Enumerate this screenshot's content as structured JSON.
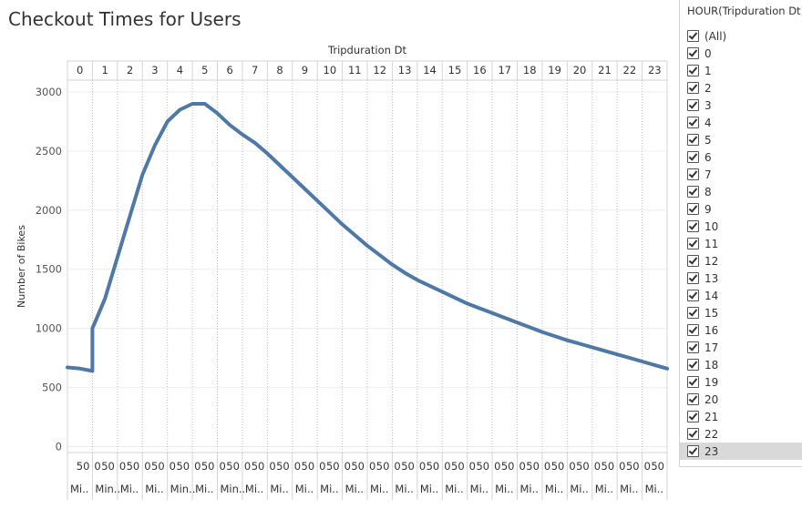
{
  "title": "Checkout Times for Users",
  "filter": {
    "title": "HOUR(Tripduration Dt)",
    "items": [
      "(All)",
      "0",
      "1",
      "2",
      "3",
      "4",
      "5",
      "6",
      "7",
      "8",
      "9",
      "10",
      "11",
      "12",
      "13",
      "14",
      "15",
      "16",
      "17",
      "18",
      "19",
      "20",
      "21",
      "22",
      "23"
    ],
    "selected": "23"
  },
  "chart_data": {
    "type": "line",
    "title": "Checkout Times for Users",
    "column_header": "Tripduration Dt",
    "ylabel": "Number of Bikes",
    "ylim": [
      -50,
      3100
    ],
    "yticks": [
      0,
      500,
      1000,
      1500,
      2000,
      2500,
      3000
    ],
    "panels": [
      "0",
      "1",
      "2",
      "3",
      "4",
      "5",
      "6",
      "7",
      "8",
      "9",
      "10",
      "11",
      "12",
      "13",
      "14",
      "15",
      "16",
      "17",
      "18",
      "19",
      "20",
      "21",
      "22",
      "23"
    ],
    "panel_tick_labels": [
      "0",
      "50"
    ],
    "panel_footer": [
      "Mi..",
      "Min..",
      "Mi..",
      "Mi..",
      "Min..",
      "Mi..",
      "Min..",
      "Mi..",
      "Mi..",
      "Mi..",
      "Mi..",
      "Mi..",
      "Mi..",
      "Mi..",
      "Mi..",
      "Mi..",
      "Mi..",
      "Mi..",
      "Mi..",
      "Mi..",
      "Mi..",
      "Mi..",
      "Mi..",
      "Mi.."
    ],
    "series": [
      {
        "color": "#4e79a7",
        "x_hours": [
          0,
          0.5,
          1,
          1,
          1.5,
          2,
          2.5,
          3,
          3.5,
          4,
          4.5,
          5,
          5.5,
          6,
          6.5,
          7,
          7.5,
          8,
          8.5,
          9,
          9.5,
          10,
          10.5,
          11,
          11.5,
          12,
          12.5,
          13,
          13.5,
          14,
          14.5,
          15,
          15.5,
          16,
          16.5,
          17,
          17.5,
          18,
          18.5,
          19,
          19.5,
          20,
          20.5,
          21,
          21.5,
          22,
          22.5,
          23,
          23.5,
          24
        ],
        "y_values": [
          670,
          660,
          640,
          1000,
          1250,
          1600,
          1950,
          2300,
          2550,
          2750,
          2850,
          2900,
          2900,
          2820,
          2720,
          2640,
          2570,
          2480,
          2380,
          2280,
          2180,
          2080,
          1980,
          1880,
          1790,
          1700,
          1620,
          1540,
          1470,
          1410,
          1360,
          1310,
          1260,
          1210,
          1170,
          1130,
          1090,
          1050,
          1010,
          970,
          935,
          900,
          870,
          840,
          810,
          780,
          750,
          720,
          690,
          660
        ]
      }
    ]
  }
}
